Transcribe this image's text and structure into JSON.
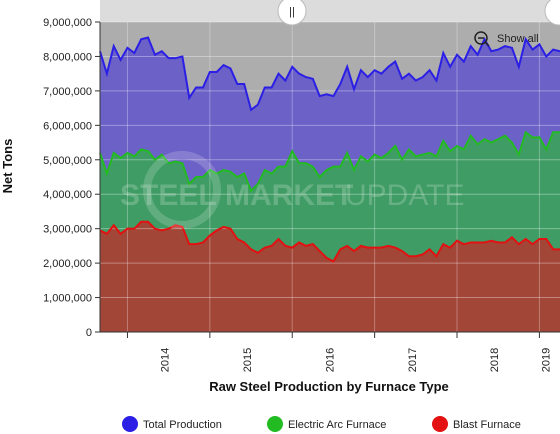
{
  "chart_data": {
    "type": "area",
    "title": "",
    "xlabel": "Raw Steel Production by Furnace Type",
    "ylabel": "Net Tons",
    "ylim": [
      0,
      9000000
    ],
    "y_ticks": [
      "0",
      "1,000,000",
      "2,000,000",
      "3,000,000",
      "4,000,000",
      "5,000,000",
      "6,000,000",
      "7,000,000",
      "8,000,000",
      "9,000,000"
    ],
    "x_ticks": [
      "2014",
      "2015",
      "2016",
      "2017",
      "2018",
      "2019"
    ],
    "x_start": "2013-09",
    "grid": true,
    "legend_position": "bottom",
    "series": [
      {
        "name": "Total Production",
        "color": "#2b1fe6",
        "fill": "#6c61c7",
        "values": [
          8150000,
          7500000,
          8300000,
          7900000,
          8250000,
          8100000,
          8500000,
          8550000,
          8050000,
          8150000,
          7950000,
          7950000,
          8000000,
          6800000,
          7100000,
          7100000,
          7550000,
          7550000,
          7750000,
          7650000,
          7200000,
          7200000,
          6450000,
          6600000,
          7100000,
          7100000,
          7500000,
          7300000,
          7700000,
          7500000,
          7400000,
          7350000,
          6850000,
          6900000,
          6850000,
          7200000,
          7700000,
          7050000,
          7600000,
          7400000,
          7600000,
          7500000,
          7700000,
          7850000,
          7350000,
          7500000,
          7300000,
          7400000,
          7600000,
          7300000,
          8100000,
          7700000,
          8050000,
          7850000,
          8300000,
          8050000,
          8500000,
          8150000,
          8200000,
          8300000,
          8250000,
          7700000,
          8500000,
          8200000,
          8350000,
          8000000,
          8200000,
          8150000
        ]
      },
      {
        "name": "Electric Arc Furnace",
        "color": "#22bb22",
        "fill": "#3f9c64",
        "values": [
          5200000,
          4600000,
          5200000,
          5050000,
          5200000,
          5100000,
          5300000,
          5250000,
          5000000,
          5150000,
          4900000,
          4950000,
          4900000,
          4300000,
          4500000,
          4500000,
          4700000,
          4600000,
          4700000,
          4650000,
          4500000,
          4600000,
          4100000,
          4300000,
          4700000,
          4600000,
          4800000,
          4800000,
          5250000,
          4900000,
          4900000,
          4800000,
          4500000,
          4700000,
          4800000,
          4800000,
          5200000,
          4700000,
          5100000,
          4950000,
          5150000,
          5050000,
          5200000,
          5400000,
          5000000,
          5300000,
          5100000,
          5150000,
          5200000,
          5100000,
          5550000,
          5250000,
          5400000,
          5300000,
          5700000,
          5450000,
          5600000,
          5500000,
          5600000,
          5700000,
          5500000,
          5150000,
          5800000,
          5650000,
          5650000,
          5300000,
          5800000,
          5800000
        ]
      },
      {
        "name": "Blast Furnace",
        "color": "#e31111",
        "fill": "#a24637",
        "values": [
          2950000,
          2850000,
          3100000,
          2850000,
          3000000,
          3000000,
          3200000,
          3200000,
          3000000,
          2950000,
          3000000,
          3100000,
          3050000,
          2550000,
          2550000,
          2600000,
          2800000,
          2950000,
          3050000,
          3000000,
          2700000,
          2600000,
          2400000,
          2300000,
          2450000,
          2500000,
          2700000,
          2500000,
          2450000,
          2600000,
          2500000,
          2550000,
          2350000,
          2150000,
          2050000,
          2400000,
          2500000,
          2350000,
          2500000,
          2450000,
          2450000,
          2450000,
          2500000,
          2450000,
          2350000,
          2200000,
          2200000,
          2250000,
          2400000,
          2200000,
          2550000,
          2450000,
          2650000,
          2550000,
          2600000,
          2600000,
          2600000,
          2650000,
          2600000,
          2600000,
          2750000,
          2550000,
          2700000,
          2550000,
          2700000,
          2700000,
          2400000,
          2400000
        ]
      }
    ]
  },
  "navigator": {
    "handle_glyph": "||"
  },
  "show_all": {
    "label": "Show all"
  },
  "watermark": {
    "brand_left": "STEEL",
    "brand_mid": " MARKET",
    "brand_right": " UPDATE"
  }
}
